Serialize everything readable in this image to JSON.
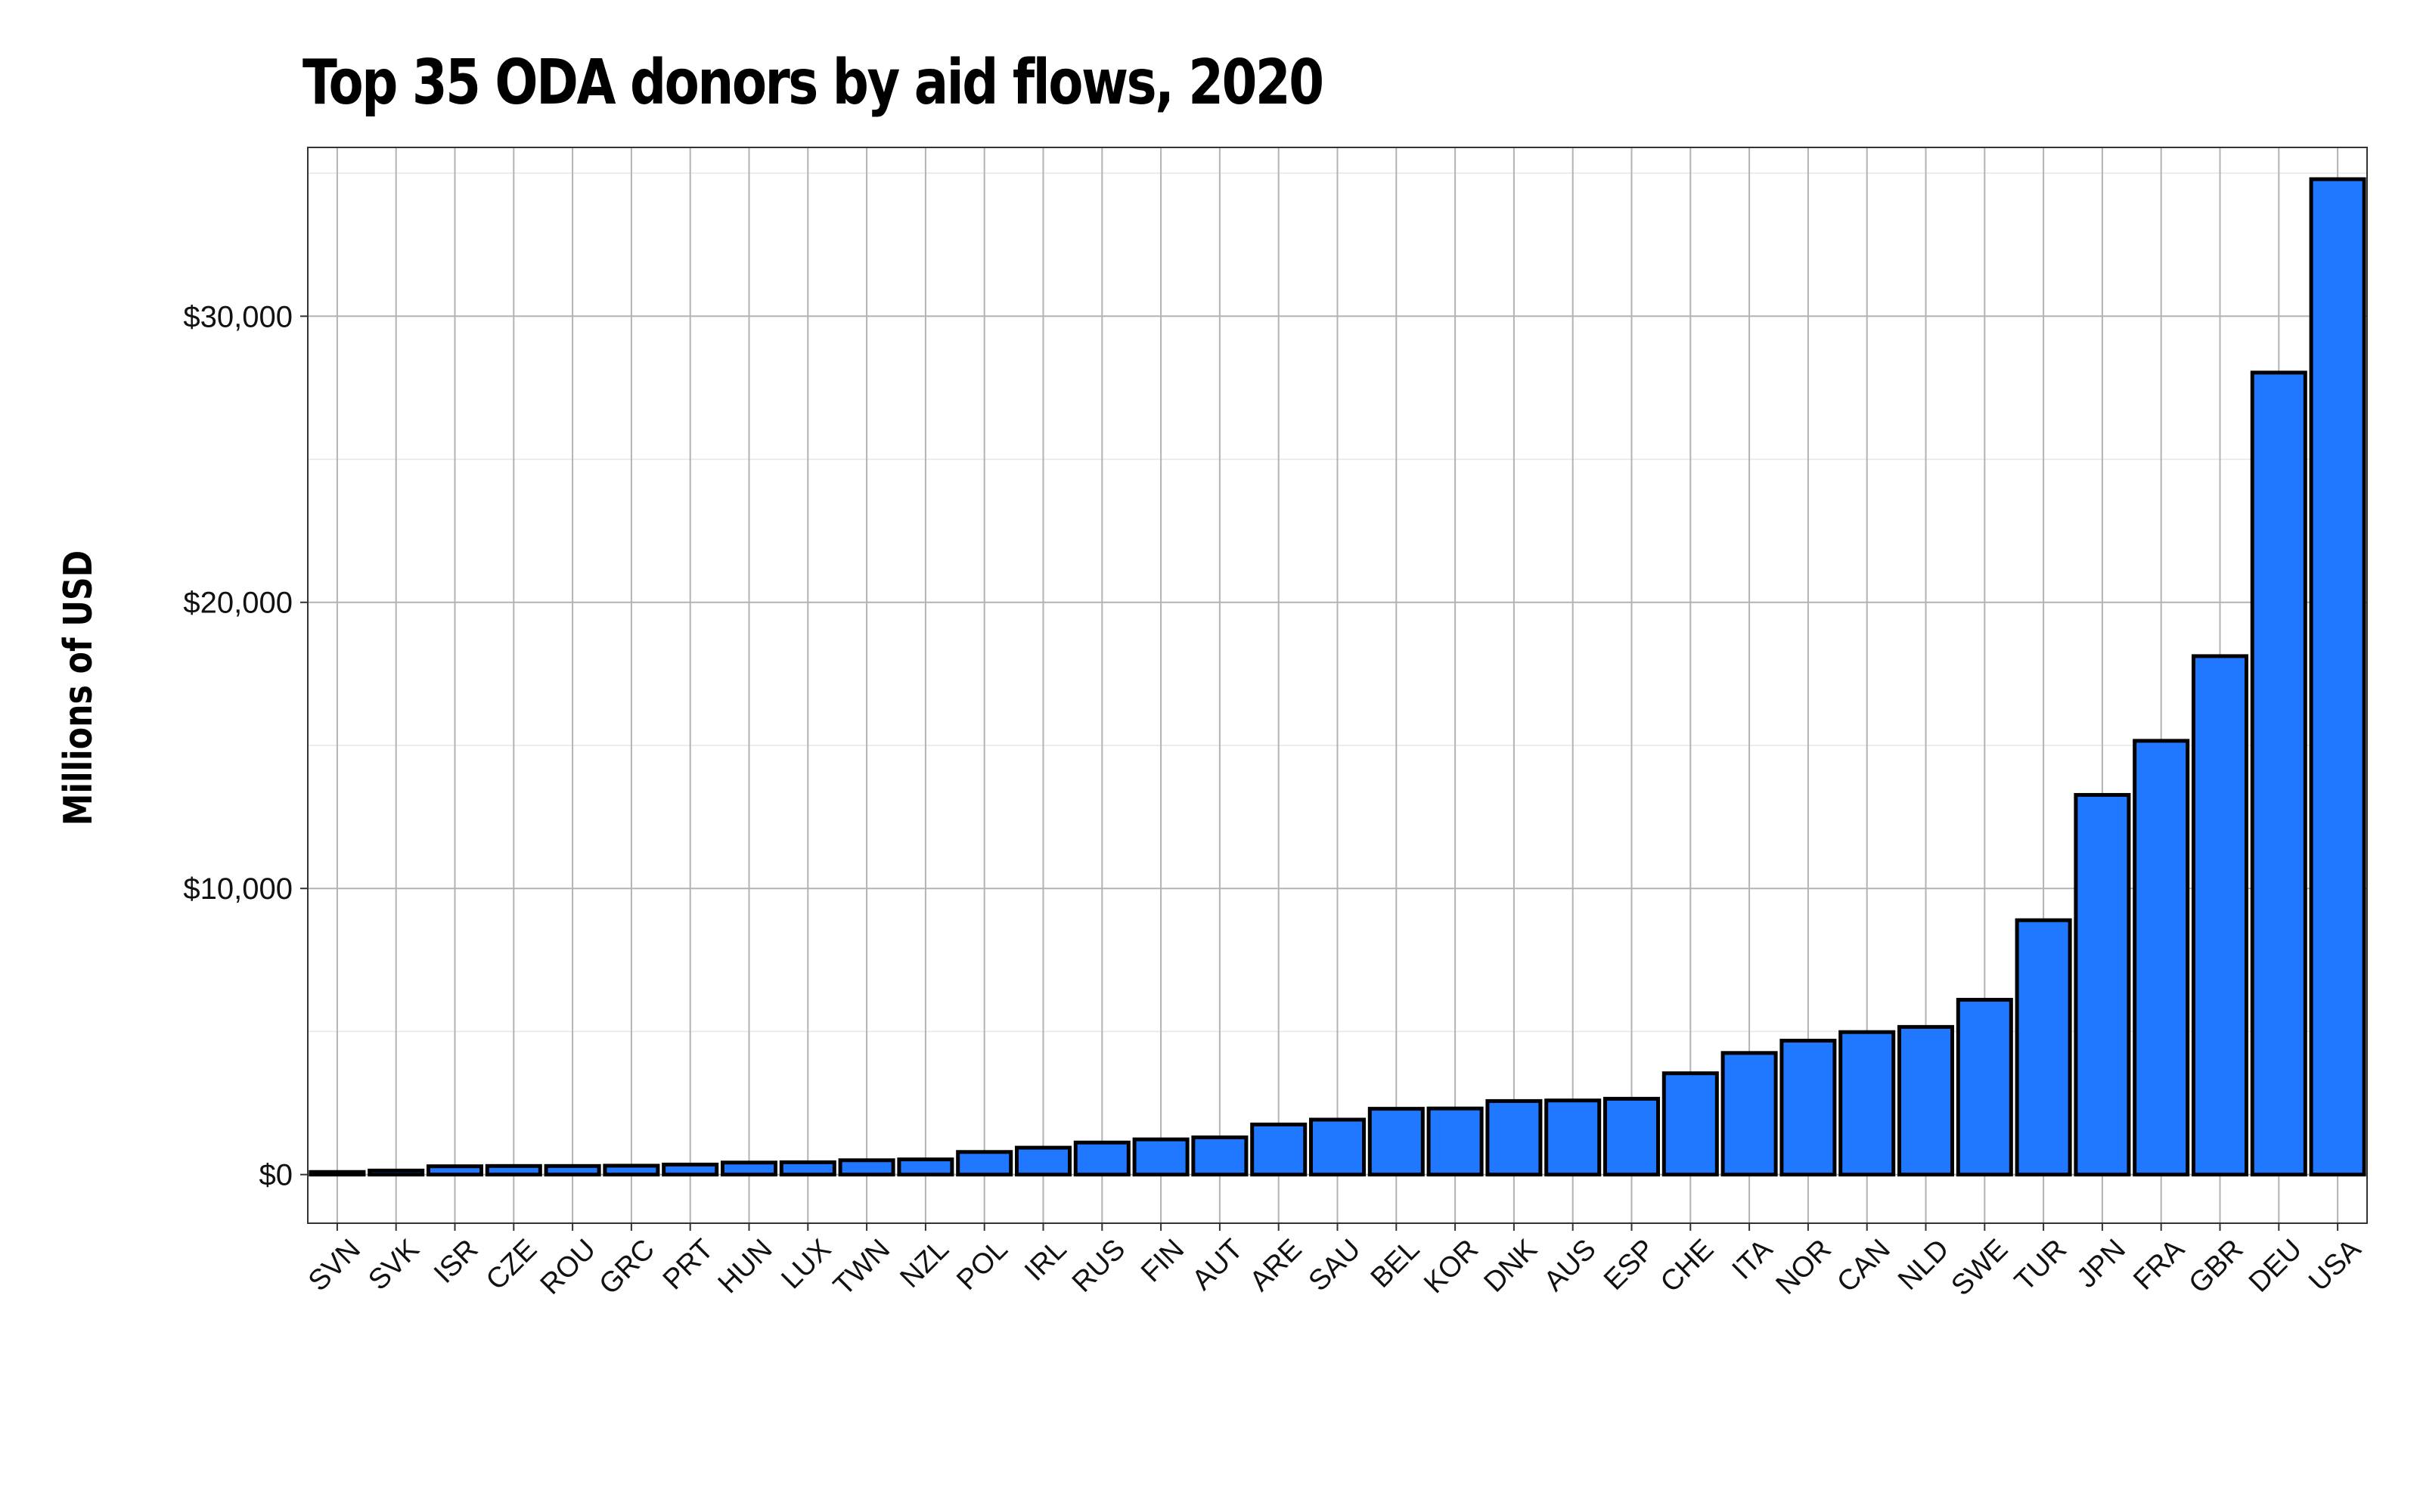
{
  "chart_data": {
    "type": "bar",
    "title": "Top 35 ODA donors by aid flows, 2020",
    "xlabel": "",
    "ylabel": "Millions of USD",
    "ylim": [
      -1700,
      35900
    ],
    "y_ticks": [
      0,
      10000,
      20000,
      30000
    ],
    "y_tick_labels": [
      "$0",
      "$10,000",
      "$20,000",
      "$30,000"
    ],
    "grid": true,
    "bar_color": "#1f78ff",
    "bar_outline": "#000000",
    "categories": [
      "SVN",
      "SVK",
      "ISR",
      "CZE",
      "ROU",
      "GRC",
      "PRT",
      "HUN",
      "LUX",
      "TWN",
      "NZL",
      "POL",
      "IRL",
      "RUS",
      "FIN",
      "AUT",
      "ARE",
      "SAU",
      "BEL",
      "KOR",
      "DNK",
      "AUS",
      "ESP",
      "CHE",
      "ITA",
      "NOR",
      "CAN",
      "NLD",
      "SWE",
      "TUR",
      "JPN",
      "FRA",
      "GBR",
      "DEU",
      "USA"
    ],
    "values": [
      90,
      140,
      290,
      300,
      300,
      310,
      350,
      420,
      430,
      500,
      530,
      790,
      940,
      1120,
      1230,
      1300,
      1750,
      1920,
      2300,
      2310,
      2570,
      2590,
      2650,
      3540,
      4250,
      4680,
      4980,
      5160,
      6110,
      8890,
      13270,
      15160,
      18120,
      28030,
      34790
    ]
  }
}
